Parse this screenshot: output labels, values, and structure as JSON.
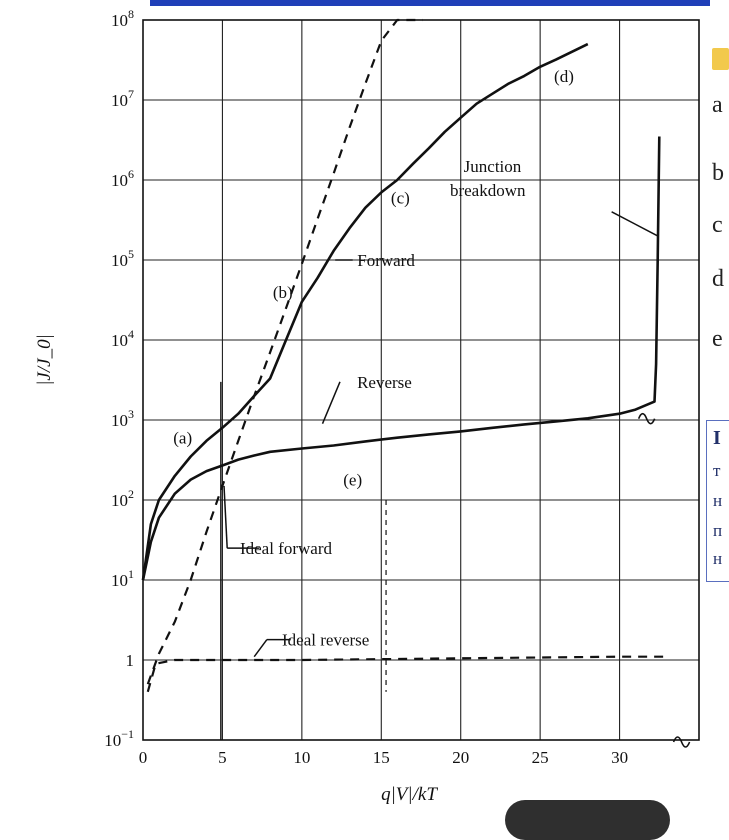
{
  "chart_data": {
    "type": "line",
    "xlabel": "q|V|/kT",
    "ylabel": "|J/J_0|",
    "xlim": [
      0,
      35
    ],
    "ylim_log10": [
      -1,
      8
    ],
    "y_scale": "log",
    "grid": true,
    "x_ticks": [
      "0",
      "5",
      "10",
      "15",
      "20",
      "25",
      "30"
    ],
    "y_ticks": [
      {
        "base": "10",
        "exp": "8"
      },
      {
        "base": "10",
        "exp": "7"
      },
      {
        "base": "10",
        "exp": "6"
      },
      {
        "base": "10",
        "exp": "5"
      },
      {
        "base": "10",
        "exp": "4"
      },
      {
        "base": "10",
        "exp": "3"
      },
      {
        "base": "10",
        "exp": "2"
      },
      {
        "base": "10",
        "exp": "1"
      },
      {
        "base": "1",
        "exp": ""
      },
      {
        "base": "10",
        "exp": "−1"
      }
    ],
    "series": [
      {
        "name": "Forward",
        "style": "solid",
        "points": [
          [
            0,
            10
          ],
          [
            0.5,
            50
          ],
          [
            1,
            100
          ],
          [
            2,
            200
          ],
          [
            3,
            350
          ],
          [
            4,
            550
          ],
          [
            5,
            800
          ],
          [
            6,
            1200
          ],
          [
            7,
            2000
          ],
          [
            8,
            3300
          ],
          [
            9,
            10000
          ],
          [
            10,
            30000
          ],
          [
            11,
            60000
          ],
          [
            12,
            130000
          ],
          [
            13,
            250000
          ],
          [
            14,
            450000
          ],
          [
            15,
            700000
          ],
          [
            16,
            1000000
          ],
          [
            17,
            1600000
          ],
          [
            18,
            2500000
          ],
          [
            19,
            4000000
          ],
          [
            20,
            6000000
          ],
          [
            21,
            9000000
          ],
          [
            22,
            12000000
          ],
          [
            23,
            16000000
          ],
          [
            24,
            20000000
          ],
          [
            25,
            26000000
          ],
          [
            26,
            32000000
          ],
          [
            27,
            40000000
          ],
          [
            28,
            50000000
          ]
        ]
      },
      {
        "name": "Reverse",
        "style": "solid",
        "points": [
          [
            0,
            10
          ],
          [
            0.5,
            30
          ],
          [
            1,
            60
          ],
          [
            2,
            120
          ],
          [
            3,
            180
          ],
          [
            4,
            230
          ],
          [
            5,
            270
          ],
          [
            6,
            320
          ],
          [
            7,
            360
          ],
          [
            8,
            400
          ],
          [
            10,
            440
          ],
          [
            12,
            480
          ],
          [
            14,
            540
          ],
          [
            16,
            600
          ],
          [
            18,
            660
          ],
          [
            20,
            720
          ],
          [
            22,
            800
          ],
          [
            24,
            880
          ],
          [
            26,
            960
          ],
          [
            28,
            1050
          ],
          [
            30,
            1200
          ],
          [
            31,
            1350
          ],
          [
            32.2,
            1700
          ],
          [
            32.3,
            5000
          ],
          [
            32.4,
            100000
          ],
          [
            32.5,
            3500000
          ]
        ]
      },
      {
        "name": "Ideal forward",
        "style": "dashed",
        "points": [
          [
            0.3,
            0.5
          ],
          [
            1,
            1.2
          ],
          [
            2,
            3
          ],
          [
            3,
            10
          ],
          [
            4,
            40
          ],
          [
            5,
            150
          ],
          [
            6,
            550
          ],
          [
            7,
            2000
          ],
          [
            8,
            7000
          ],
          [
            9,
            25000
          ],
          [
            10,
            90000
          ],
          [
            11,
            330000
          ],
          [
            12,
            1200000
          ],
          [
            13,
            4500000
          ],
          [
            14,
            16000000
          ],
          [
            15,
            55000000
          ],
          [
            16,
            100000000
          ],
          [
            17.6,
            100000000
          ]
        ]
      },
      {
        "name": "Ideal reverse",
        "style": "dashed",
        "points": [
          [
            0.3,
            0.4
          ],
          [
            0.8,
            0.9
          ],
          [
            2,
            1
          ],
          [
            10,
            1
          ],
          [
            20,
            1.05
          ],
          [
            30,
            1.1
          ],
          [
            33,
            1.1
          ]
        ]
      }
    ],
    "annotations": [
      {
        "text": "(a)",
        "x": 2.5,
        "y": 600
      },
      {
        "text": "(b)",
        "x": 8.8,
        "y": 40000
      },
      {
        "text": "(c)",
        "x": 16.2,
        "y": 600000
      },
      {
        "text": "(d)",
        "x": 26.5,
        "y": 20000000
      },
      {
        "text": "(e)",
        "x": 13.2,
        "y": 180
      },
      {
        "text": "Forward",
        "x": 15.3,
        "y": 100000
      },
      {
        "text": "Reverse",
        "x": 15.2,
        "y": 3000
      },
      {
        "text": "Ideal forward",
        "x": 9,
        "y": 25
      },
      {
        "text": "Ideal reverse",
        "x": 11.5,
        "y": 1.8
      },
      {
        "text": "Junction",
        "x": 22,
        "y": 1500000
      },
      {
        "text": "breakdown",
        "x": 21.7,
        "y": 750000
      }
    ]
  },
  "side_text": {
    "letters": [
      "a",
      "b",
      "c",
      "d",
      "e"
    ],
    "note_lines": [
      "I",
      "т",
      "н",
      "п",
      "н"
    ]
  },
  "colors": {
    "line": "#111111",
    "grid": "#222222",
    "accent": "#1f3fb8",
    "note_border": "#5a6fbf"
  }
}
